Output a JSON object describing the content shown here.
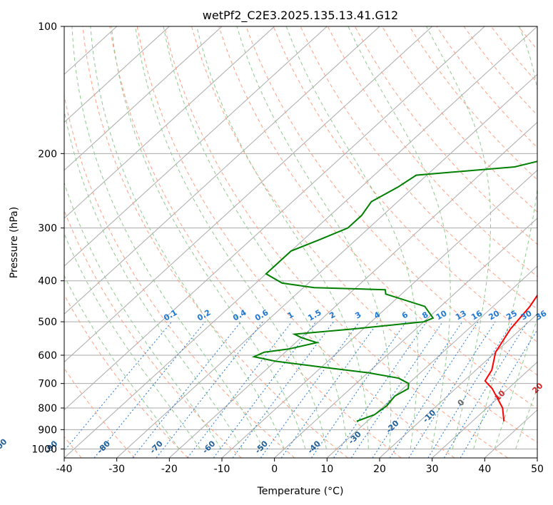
{
  "chart_data": {
    "type": "line",
    "title": "wetPf2_C2E3.2025.135.13.41.G12",
    "xlabel": "Temperature (°C)",
    "ylabel": "Pressure (hPa)",
    "xlim": [
      -40,
      50
    ],
    "ylim": [
      1050,
      100
    ],
    "y_scale": "log",
    "x_ticks": [
      "-40",
      "-30",
      "-20",
      "-10",
      "0",
      "10",
      "20",
      "30",
      "40",
      "50"
    ],
    "y_ticks": [
      "100",
      "200",
      "300",
      "400",
      "500",
      "600",
      "700",
      "800",
      "900",
      "1000"
    ],
    "grid": true,
    "series": [
      {
        "color": "#ff0000",
        "points": [
          [
            36,
            860
          ],
          [
            33,
            800
          ],
          [
            27,
            720
          ],
          [
            24,
            690
          ],
          [
            23,
            650
          ],
          [
            20,
            590
          ],
          [
            18,
            520
          ],
          [
            17,
            460
          ],
          [
            16,
            430
          ],
          [
            16,
            420
          ],
          [
            18,
            410
          ],
          [
            20,
            390
          ],
          [
            21,
            370
          ],
          [
            20,
            340
          ],
          [
            18,
            310
          ],
          [
            16,
            270
          ],
          [
            12,
            230
          ],
          [
            9,
            200
          ],
          [
            7,
            170
          ],
          [
            4,
            140
          ],
          [
            2,
            125
          ],
          [
            3,
            115
          ],
          [
            5,
            107
          ],
          [
            6,
            100
          ]
        ]
      },
      {
        "color": "#008000",
        "points": [
          [
            8,
            860
          ],
          [
            10,
            830
          ],
          [
            10.5,
            790
          ],
          [
            10,
            750
          ],
          [
            11,
            720
          ],
          [
            10,
            700
          ],
          [
            7,
            680
          ],
          [
            0,
            660
          ],
          [
            -10,
            640
          ],
          [
            -20,
            620
          ],
          [
            -25,
            605
          ],
          [
            -24,
            590
          ],
          [
            -20,
            580
          ],
          [
            -16,
            560
          ],
          [
            -20,
            545
          ],
          [
            -22,
            535
          ],
          [
            -12,
            520
          ],
          [
            0,
            500
          ],
          [
            1,
            490
          ],
          [
            -3,
            460
          ],
          [
            -13,
            430
          ],
          [
            -14,
            420
          ],
          [
            -28,
            415
          ],
          [
            -35,
            405
          ],
          [
            -40,
            385
          ],
          [
            -40,
            340
          ],
          [
            -37,
            320
          ],
          [
            -34,
            300
          ],
          [
            -34,
            280
          ],
          [
            -35,
            260
          ],
          [
            -33,
            240
          ],
          [
            -32,
            225
          ],
          [
            -15,
            215
          ],
          [
            -10,
            205
          ],
          [
            -5,
            185
          ],
          [
            -3,
            170
          ],
          [
            -3,
            155
          ],
          [
            -4,
            140
          ],
          [
            -2,
            125
          ],
          [
            1,
            110
          ],
          [
            3,
            100
          ]
        ]
      }
    ],
    "dry_adiabat_labels": [
      "-100",
      "-90",
      "-80",
      "-70",
      "-60",
      "-50",
      "-40",
      "-30",
      "-20",
      "-10",
      "0",
      "10",
      "20",
      "30",
      "40"
    ],
    "mixing_ratio_labels": [
      "0.1",
      "0.2",
      "0.4",
      "0.6",
      "1",
      "1.5",
      "2",
      "3",
      "4",
      "6",
      "8",
      "10",
      "13",
      "16",
      "20",
      "25",
      "30",
      "36"
    ],
    "background_colors": {
      "isotherm": "#aaaaaa",
      "isobar": "#aaaaaa",
      "dry_adiabat": "#ff9f80",
      "moist_adiabat": "#8fc98f",
      "mixing_ratio": "#1f77d4",
      "label_blue_dark": "#1f5f9a",
      "label_red": "#d62728",
      "label_gray": "#666666",
      "brown_curve": "#c8a882"
    }
  }
}
